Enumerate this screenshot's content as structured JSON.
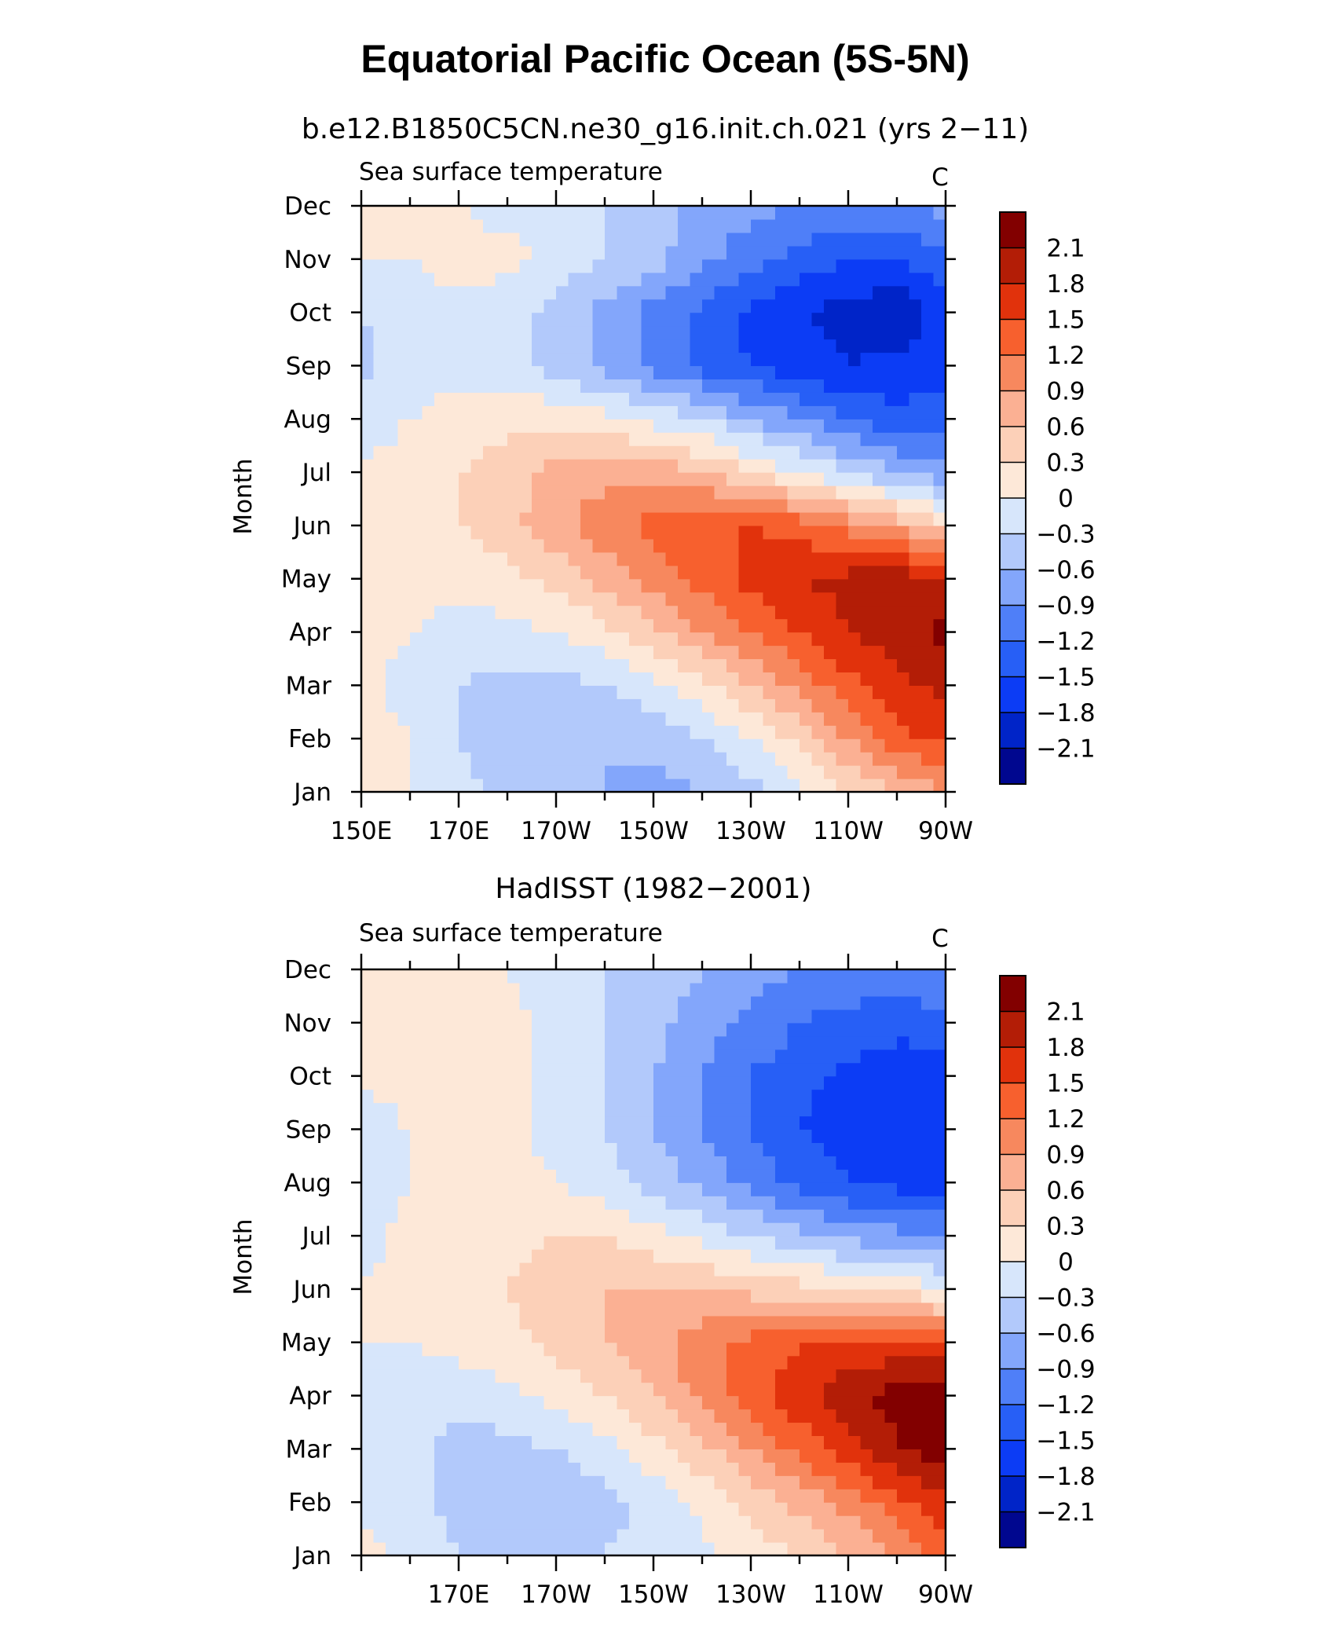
{
  "figure": {
    "title": "Equatorial Pacific Ocean (5S-5N)",
    "units_label": "C"
  },
  "levels": [
    -2.1,
    -1.8,
    -1.5,
    -1.2,
    -0.9,
    -0.6,
    -0.3,
    0,
    0.3,
    0.6,
    0.9,
    1.2,
    1.5,
    1.8,
    2.1
  ],
  "level_labels": [
    "2.1",
    "1.8",
    "1.5",
    "1.2",
    "0.9",
    "0.6",
    "0.3",
    "0",
    "−0.3",
    "−0.6",
    "−0.9",
    "−1.2",
    "−1.5",
    "−1.8",
    "−2.1"
  ],
  "colors": [
    "#00078f",
    "#0024c8",
    "#0c3cf5",
    "#275ff6",
    "#4f7ff8",
    "#83a6fb",
    "#b2c9fb",
    "#d7e6fb",
    "#fde8d8",
    "#fcd0b8",
    "#fbb093",
    "#f7885e",
    "#f7602e",
    "#e1320c",
    "#b31d06",
    "#820000"
  ],
  "chart_data": [
    {
      "type": "heatmap",
      "title": "b.e12.B1850C5CN.ne30_g16.init.ch.021 (yrs 2−11)",
      "left_string": "Sea surface temperature",
      "right_string": "C",
      "ylabel": "Month",
      "xlabel": "",
      "x": [
        150,
        160,
        170,
        180,
        190,
        200,
        210,
        220,
        230,
        240,
        250,
        260,
        270
      ],
      "x_tick_labels": [
        "150E",
        "170E",
        "170W",
        "150W",
        "130W",
        "110W",
        "90W"
      ],
      "y_tick_labels": [
        "Jan",
        "Feb",
        "Mar",
        "Apr",
        "May",
        "Jun",
        "Jul",
        "Aug",
        "Sep",
        "Oct",
        "Nov",
        "Dec"
      ],
      "z": [
        [
          0.1,
          0.0,
          -0.2,
          -0.4,
          -0.5,
          -0.6,
          -0.7,
          -0.6,
          -0.4,
          -0.1,
          0.3,
          0.6,
          0.9
        ],
        [
          0.1,
          0.0,
          -0.3,
          -0.5,
          -0.6,
          -0.6,
          -0.5,
          -0.3,
          0.0,
          0.4,
          0.9,
          1.4,
          1.6
        ],
        [
          0.1,
          -0.1,
          -0.3,
          -0.4,
          -0.4,
          -0.3,
          -0.1,
          0.2,
          0.6,
          1.0,
          1.4,
          1.7,
          1.9
        ],
        [
          0.1,
          0.0,
          -0.1,
          -0.1,
          0.0,
          0.2,
          0.5,
          0.9,
          1.2,
          1.5,
          1.8,
          2.0,
          2.2
        ],
        [
          0.1,
          0.1,
          0.1,
          0.2,
          0.4,
          0.7,
          1.0,
          1.3,
          1.6,
          1.8,
          1.9,
          2.0,
          1.8
        ],
        [
          0.1,
          0.1,
          0.3,
          0.5,
          0.8,
          1.1,
          1.3,
          1.5,
          1.5,
          1.4,
          1.1,
          0.8,
          0.4
        ],
        [
          0.0,
          0.1,
          0.3,
          0.5,
          0.7,
          0.8,
          0.8,
          0.6,
          0.3,
          0.0,
          -0.3,
          -0.6,
          -0.8
        ],
        [
          -0.1,
          0.0,
          0.1,
          0.2,
          0.2,
          0.1,
          -0.1,
          -0.3,
          -0.6,
          -0.9,
          -1.2,
          -1.4,
          -1.4
        ],
        [
          -0.4,
          -0.1,
          -0.1,
          -0.2,
          -0.4,
          -0.7,
          -1.0,
          -1.3,
          -1.5,
          -1.7,
          -1.8,
          -1.7,
          -1.6
        ],
        [
          -0.3,
          -0.1,
          -0.1,
          -0.2,
          -0.4,
          -0.7,
          -1.0,
          -1.3,
          -1.6,
          -1.8,
          -1.9,
          -2.1,
          -1.6
        ],
        [
          0.0,
          0.0,
          0.1,
          0.1,
          -0.1,
          -0.3,
          -0.5,
          -0.8,
          -1.1,
          -1.3,
          -1.5,
          -1.5,
          -1.3
        ],
        [
          0.0,
          0.0,
          0.0,
          -0.1,
          -0.2,
          -0.3,
          -0.5,
          -0.7,
          -0.8,
          -0.9,
          -1.0,
          -1.0,
          -0.8
        ]
      ]
    },
    {
      "type": "heatmap",
      "title": "HadISST (1982−2001)",
      "left_string": "Sea surface temperature",
      "right_string": "C",
      "ylabel": "Month",
      "xlabel": "",
      "x": [
        150,
        160,
        170,
        180,
        190,
        200,
        210,
        220,
        230,
        240,
        250,
        260,
        270
      ],
      "x_tick_labels": [
        "",
        "170E",
        "170W",
        "150W",
        "130W",
        "110W",
        "90W"
      ],
      "y_tick_labels": [
        "Jan",
        "Feb",
        "Mar",
        "Apr",
        "May",
        "Jun",
        "Jul",
        "Aug",
        "Sep",
        "Oct",
        "Nov",
        "Dec"
      ],
      "z": [
        [
          0.1,
          -0.1,
          -0.3,
          -0.4,
          -0.4,
          -0.3,
          -0.2,
          -0.1,
          0.1,
          0.3,
          0.6,
          0.9,
          1.3
        ],
        [
          -0.1,
          -0.2,
          -0.4,
          -0.5,
          -0.5,
          -0.4,
          -0.2,
          0.1,
          0.4,
          0.7,
          1.0,
          1.4,
          1.7
        ],
        [
          -0.1,
          -0.2,
          -0.4,
          -0.4,
          -0.3,
          -0.1,
          0.2,
          0.5,
          0.9,
          1.3,
          1.7,
          2.1,
          2.3
        ],
        [
          -0.1,
          -0.1,
          -0.2,
          -0.1,
          0.1,
          0.3,
          0.6,
          1.0,
          1.4,
          1.7,
          2.0,
          2.2,
          2.3
        ],
        [
          0.0,
          0.0,
          0.1,
          0.2,
          0.4,
          0.6,
          0.8,
          1.1,
          1.3,
          1.5,
          1.6,
          1.6,
          1.5
        ],
        [
          0.0,
          0.1,
          0.2,
          0.3,
          0.5,
          0.6,
          0.6,
          0.6,
          0.5,
          0.4,
          0.3,
          0.2,
          0.0
        ],
        [
          -0.1,
          0.1,
          0.1,
          0.2,
          0.3,
          0.3,
          0.1,
          -0.1,
          -0.3,
          -0.5,
          -0.7,
          -0.8,
          -0.9
        ],
        [
          -0.2,
          0.0,
          0.1,
          0.1,
          0.0,
          -0.2,
          -0.4,
          -0.7,
          -1.0,
          -1.3,
          -1.5,
          -1.6,
          -1.6
        ],
        [
          -0.1,
          0.0,
          0.3,
          0.1,
          -0.1,
          -0.3,
          -0.6,
          -0.9,
          -1.2,
          -1.5,
          -1.7,
          -1.8,
          -1.8
        ],
        [
          0.0,
          0.1,
          0.2,
          0.1,
          -0.1,
          -0.3,
          -0.6,
          -0.9,
          -1.2,
          -1.4,
          -1.6,
          -1.7,
          -1.7
        ],
        [
          0.1,
          0.2,
          0.2,
          0.1,
          -0.1,
          -0.3,
          -0.5,
          -0.8,
          -1.0,
          -1.2,
          -1.3,
          -1.4,
          -1.3
        ],
        [
          0.1,
          0.1,
          0.1,
          0.0,
          -0.2,
          -0.3,
          -0.4,
          -0.6,
          -0.8,
          -0.9,
          -1.0,
          -1.0,
          -0.9
        ]
      ]
    }
  ]
}
